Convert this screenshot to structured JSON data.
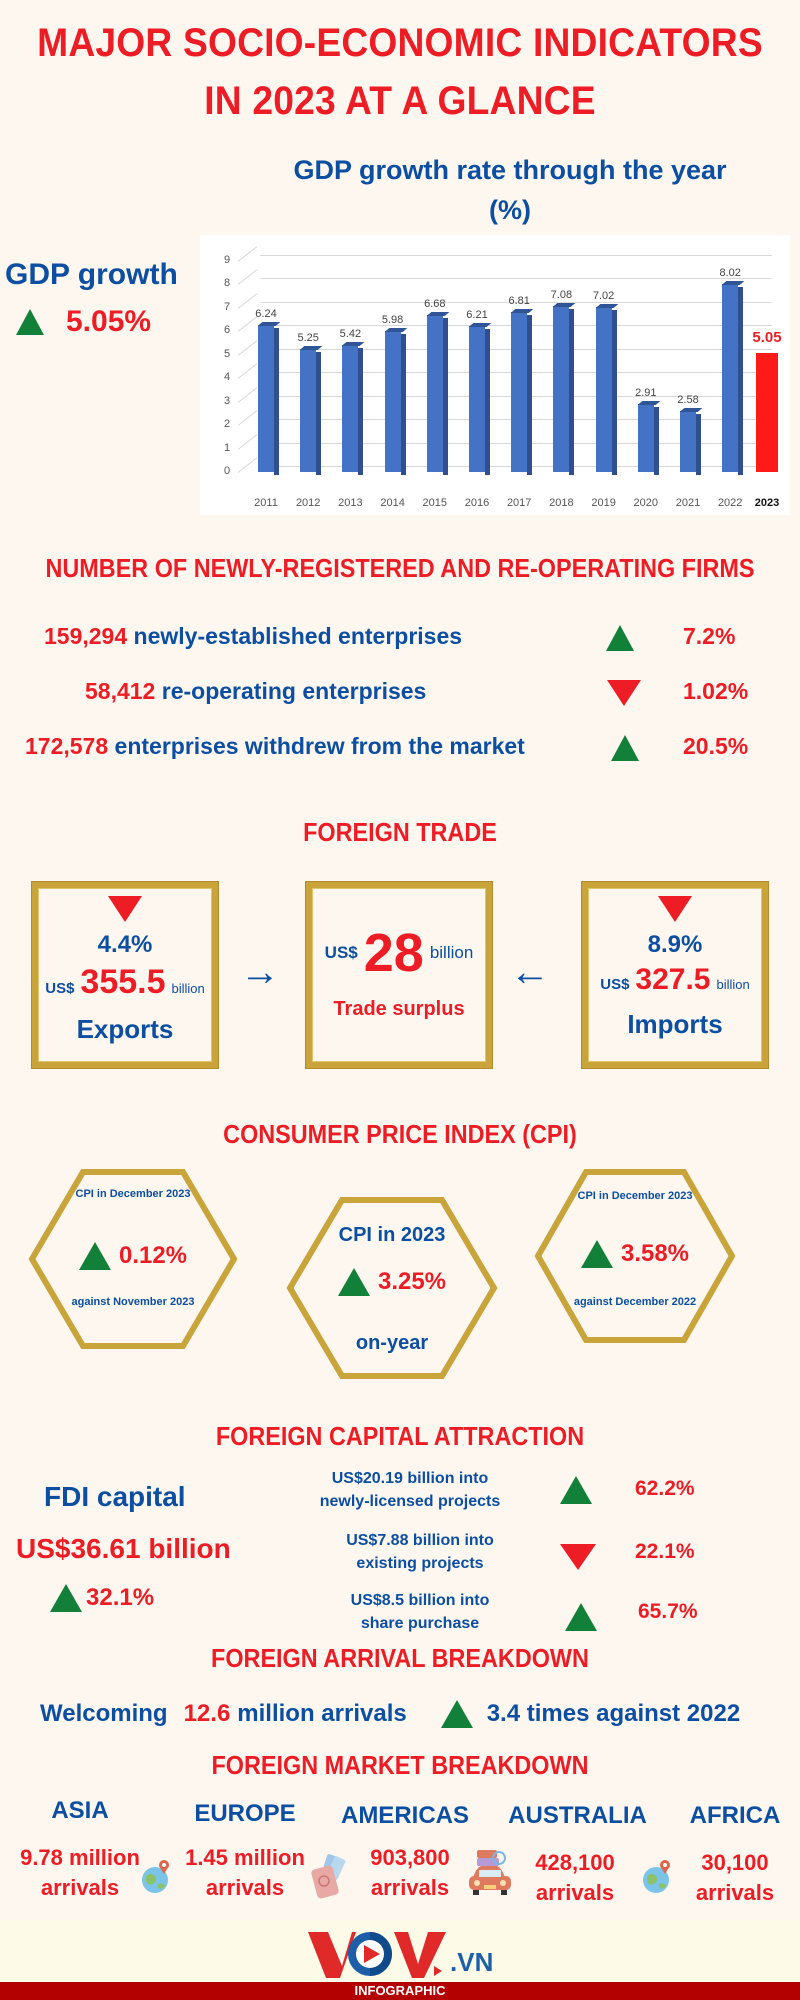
{
  "header": {
    "title_line1": "MAJOR SOCIO-ECONOMIC  INDICATORS",
    "title_line2": "IN 2023 AT A GLANCE"
  },
  "gdp": {
    "label": "GDP growth",
    "value": "5.05%",
    "trend": "up",
    "chart_title_line1": "GDP growth rate through the year",
    "chart_title_line2": "(%)"
  },
  "chart_data": {
    "type": "bar",
    "title": "GDP growth rate through the year (%)",
    "xlabel": "",
    "ylabel": "%",
    "ylim": [
      0,
      9
    ],
    "yticks": [
      0,
      1,
      2,
      3,
      4,
      5,
      6,
      7,
      8,
      9
    ],
    "grid": true,
    "categories": [
      "2011",
      "2012",
      "2013",
      "2014",
      "2015",
      "2016",
      "2017",
      "2018",
      "2019",
      "2020",
      "2021",
      "2022",
      "2023"
    ],
    "values": [
      6.24,
      5.25,
      5.42,
      5.98,
      6.68,
      6.21,
      6.81,
      7.08,
      7.02,
      2.91,
      2.58,
      8.02,
      5.05
    ],
    "labels": [
      "6.24",
      "5.25",
      "5.42",
      "5.98",
      "6.68",
      "6.21",
      "6.81",
      "7.08",
      "7.02",
      "2.91",
      "2.58",
      "8.02",
      "5.05"
    ],
    "highlight": {
      "category": "2023",
      "color": "#ff1a1a"
    },
    "bar_color": "#4472c4"
  },
  "firms": {
    "heading": "NUMBER OF NEWLY-REGISTERED AND RE-OPERATING FIRMS",
    "rows": [
      {
        "number": "159,294",
        "text": " newly-established enterprises",
        "trend": "up",
        "pct": "7.2%"
      },
      {
        "number": "58,412",
        "text": " re-operating enterprises",
        "trend": "down",
        "pct": "1.02%"
      },
      {
        "number": "172,578",
        "text": " enterprises withdrew from the market",
        "trend": "up",
        "pct": "20.5%"
      }
    ]
  },
  "trade": {
    "heading": "FOREIGN TRADE",
    "exports": {
      "trend": "down",
      "pct": "4.4%",
      "currency": "US$",
      "amount": "355.5",
      "unit": "billion",
      "label": "Exports"
    },
    "surplus": {
      "currency": "US$",
      "amount": "28",
      "unit": "billion",
      "label": "Trade surplus"
    },
    "imports": {
      "trend": "down",
      "pct": "8.9%",
      "currency": "US$",
      "amount": "327.5",
      "unit": "billion",
      "label": "Imports"
    },
    "arrow_right": "→",
    "arrow_left": "←"
  },
  "cpi": {
    "heading": "CONSUMER PRICE INDEX (CPI)",
    "items": [
      {
        "top": "CPI in December 2023",
        "trend": "up",
        "value": "0.12%",
        "bottom": "against November 2023"
      },
      {
        "top": "CPI in 2023",
        "trend": "up",
        "value": "3.25%",
        "bottom": "on-year"
      },
      {
        "top": "CPI in December 2023",
        "trend": "up",
        "value": "3.58%",
        "bottom": "against December 2022"
      }
    ]
  },
  "fdi": {
    "heading": "FOREIGN CAPITAL ATTRACTION",
    "label": "FDI capital",
    "total": "US$36.61 billion",
    "total_trend": "up",
    "total_pct": "32.1%",
    "items": [
      {
        "line1": "US$20.19 billion into",
        "line2": "newly-licensed projects",
        "trend": "up",
        "pct": "62.2%"
      },
      {
        "line1": "US$7.88 billion into",
        "line2": "existing projects",
        "trend": "down",
        "pct": "22.1%"
      },
      {
        "line1": "US$8.5 billion into",
        "line2": "share purchase",
        "trend": "up",
        "pct": "65.7%"
      }
    ]
  },
  "arrivals": {
    "heading": "FOREIGN ARRIVAL BREAKDOWN",
    "prefix": "Welcoming",
    "number": "12.6",
    "suffix": "million arrivals",
    "trend": "up",
    "growth": "3.4 times against 2022"
  },
  "markets": {
    "heading": "FOREIGN MARKET BREAKDOWN",
    "items": [
      {
        "name": "ASIA",
        "line1": "9.78 million",
        "line2": "arrivals"
      },
      {
        "name": "EUROPE",
        "line1": "1.45 million",
        "line2": "arrivals"
      },
      {
        "name": "AMERICAS",
        "line1": "903,800",
        "line2": "arrivals"
      },
      {
        "name": "AUSTRALIA",
        "line1": "428,100",
        "line2": "arrivals"
      },
      {
        "name": "AFRICA",
        "line1": "30,100",
        "line2": "arrivals"
      }
    ]
  },
  "footer": {
    "logo_text": "VOV",
    "logo_suffix": ".VN",
    "tag": "INFOGRAPHIC"
  },
  "colors": {
    "red": "#ee1c24",
    "blue": "#0b4ea2",
    "green": "#128038",
    "gold": "#c9a43a",
    "background": "#fdf7f0",
    "bar": "#4472c4",
    "footer_bar": "#b30000"
  }
}
